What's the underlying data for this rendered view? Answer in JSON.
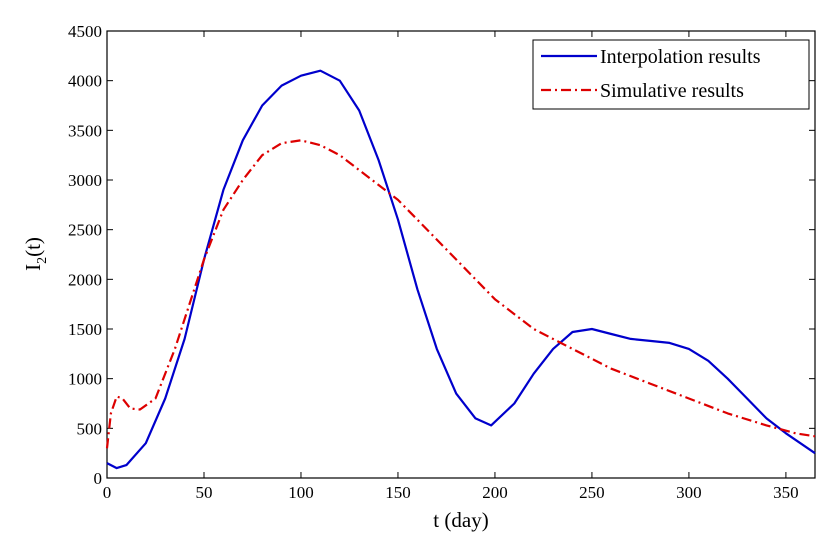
{
  "chart_data": {
    "type": "line",
    "title": "",
    "xlabel": "t (day)",
    "ylabel_main": "I",
    "ylabel_sub": "2",
    "ylabel_tail": "(t)",
    "xlim": [
      0,
      365
    ],
    "ylim": [
      0,
      4500
    ],
    "xticks": [
      0,
      50,
      100,
      150,
      200,
      250,
      300,
      350
    ],
    "yticks": [
      0,
      500,
      1000,
      1500,
      2000,
      2500,
      3000,
      3500,
      4000,
      4500
    ],
    "grid": false,
    "legend_position": "top-right",
    "series": [
      {
        "name": "Interpolation results",
        "color": "#0000cc",
        "style": "solid",
        "x": [
          0,
          5,
          10,
          20,
          30,
          40,
          50,
          60,
          70,
          80,
          90,
          100,
          110,
          120,
          130,
          140,
          150,
          160,
          170,
          180,
          190,
          198,
          210,
          220,
          230,
          240,
          250,
          260,
          270,
          280,
          290,
          300,
          310,
          320,
          330,
          340,
          350,
          365
        ],
        "y": [
          150,
          100,
          130,
          350,
          800,
          1400,
          2200,
          2900,
          3400,
          3750,
          3950,
          4050,
          4100,
          4000,
          3700,
          3200,
          2600,
          1900,
          1300,
          850,
          600,
          530,
          750,
          1050,
          1300,
          1470,
          1500,
          1450,
          1400,
          1380,
          1360,
          1300,
          1180,
          1000,
          800,
          600,
          450,
          250
        ]
      },
      {
        "name": "Simulative results",
        "color": "#dd0000",
        "style": "dashdot",
        "x": [
          0,
          2,
          5,
          8,
          12,
          17,
          25,
          35,
          50,
          60,
          70,
          80,
          90,
          100,
          110,
          120,
          130,
          140,
          150,
          160,
          170,
          180,
          190,
          200,
          220,
          240,
          260,
          280,
          300,
          320,
          340,
          355,
          365
        ],
        "y": [
          300,
          650,
          820,
          800,
          700,
          690,
          800,
          1300,
          2200,
          2700,
          3000,
          3250,
          3370,
          3400,
          3350,
          3250,
          3100,
          2950,
          2800,
          2600,
          2400,
          2200,
          2000,
          1800,
          1500,
          1300,
          1100,
          950,
          800,
          650,
          530,
          450,
          420
        ]
      }
    ]
  }
}
